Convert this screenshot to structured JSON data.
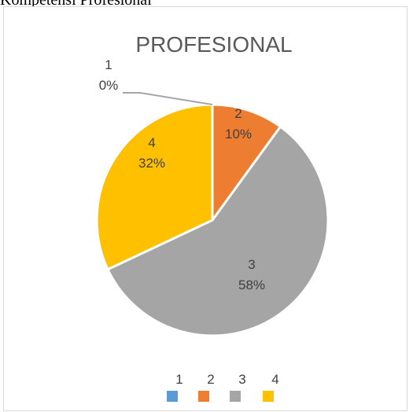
{
  "caption": "Kompetensi Profesional",
  "chart_data": {
    "type": "pie",
    "title": "PROFESIONAL",
    "categories": [
      "1",
      "2",
      "3",
      "4"
    ],
    "values": [
      0,
      10,
      58,
      32
    ],
    "percent_labels": [
      "0%",
      "10%",
      "58%",
      "32%"
    ],
    "colors": [
      "#5b9bd5",
      "#ed7d31",
      "#a5a5a5",
      "#ffc000"
    ],
    "legend": {
      "position": "bottom",
      "entries": [
        "1",
        "2",
        "3",
        "4"
      ]
    }
  }
}
